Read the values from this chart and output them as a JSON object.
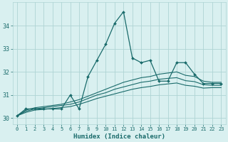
{
  "xlabel": "Humidex (Indice chaleur)",
  "background_color": "#d9f0f0",
  "grid_color": "#aed4d4",
  "line_color": "#1a6b6b",
  "xlim": [
    -0.5,
    23.5
  ],
  "ylim": [
    29.75,
    35.0
  ],
  "yticks": [
    30,
    31,
    32,
    33,
    34
  ],
  "xticks": [
    0,
    1,
    2,
    3,
    4,
    5,
    6,
    7,
    8,
    9,
    10,
    11,
    12,
    13,
    14,
    15,
    16,
    17,
    18,
    19,
    20,
    21,
    22,
    23
  ],
  "series_main": [
    30.1,
    30.4,
    30.4,
    30.4,
    30.4,
    30.4,
    31.0,
    30.4,
    31.8,
    32.5,
    33.2,
    34.1,
    34.6,
    32.6,
    32.4,
    32.5,
    31.6,
    31.6,
    32.4,
    32.4,
    31.9,
    31.5,
    31.5,
    31.5
  ],
  "series_trend1": [
    30.1,
    30.35,
    30.45,
    30.5,
    30.55,
    30.6,
    30.7,
    30.8,
    30.95,
    31.1,
    31.25,
    31.4,
    31.55,
    31.65,
    31.75,
    31.8,
    31.9,
    31.95,
    32.0,
    31.85,
    31.8,
    31.6,
    31.55,
    31.55
  ],
  "series_trend2": [
    30.1,
    30.3,
    30.4,
    30.45,
    30.5,
    30.55,
    30.6,
    30.7,
    30.85,
    31.0,
    31.1,
    31.25,
    31.35,
    31.45,
    31.55,
    31.6,
    31.68,
    31.72,
    31.75,
    31.62,
    31.58,
    31.45,
    31.42,
    31.42
  ],
  "series_trend3": [
    30.1,
    30.25,
    30.35,
    30.38,
    30.42,
    30.46,
    30.5,
    30.6,
    30.72,
    30.85,
    30.95,
    31.05,
    31.15,
    31.25,
    31.32,
    31.37,
    31.44,
    31.48,
    31.52,
    31.42,
    31.38,
    31.3,
    31.32,
    31.32
  ]
}
